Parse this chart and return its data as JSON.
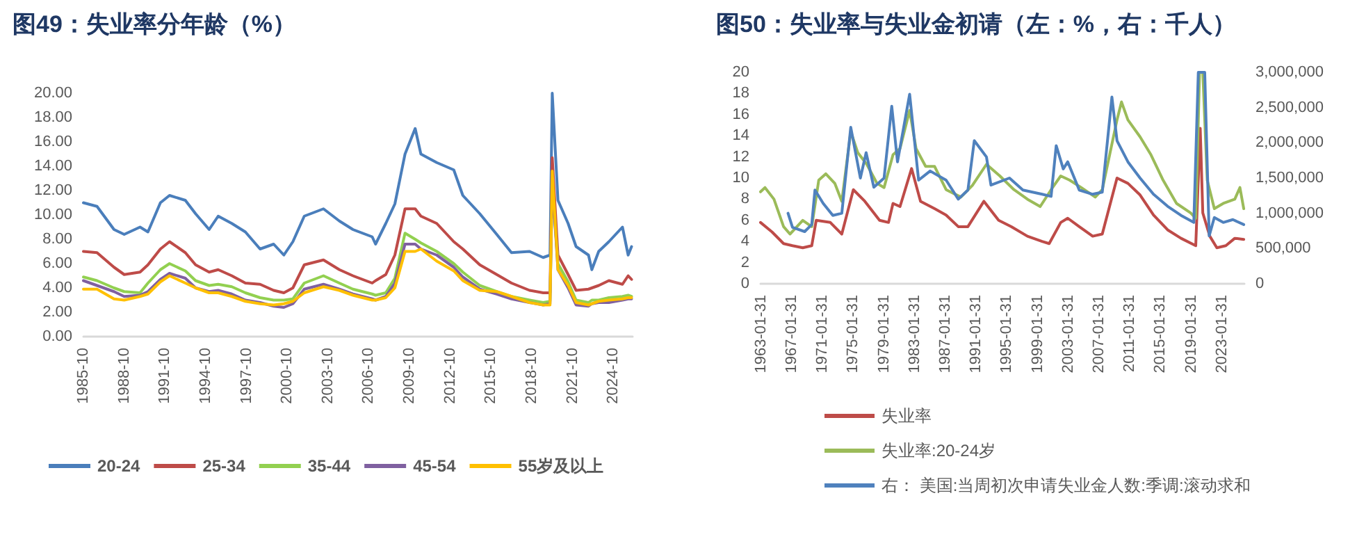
{
  "chart_data": [
    {
      "type": "line",
      "title": "图49：失业率分年龄（%）",
      "legend": "bottom",
      "marker": "none",
      "line_style": "solid",
      "xlim": [
        "1985-10",
        "2026-03"
      ],
      "xticks": [
        "1985-10",
        "1988-10",
        "1991-10",
        "1994-10",
        "1997-10",
        "2000-10",
        "2003-10",
        "2006-10",
        "2009-10",
        "2012-10",
        "2015-10",
        "2018-10",
        "2021-10",
        "2024-10"
      ],
      "ylim": [
        0,
        20
      ],
      "yticks": [
        {
          "value": 0,
          "label": "0.00"
        },
        {
          "value": 2,
          "label": "2.00"
        },
        {
          "value": 4,
          "label": "4.00"
        },
        {
          "value": 6,
          "label": "6.00"
        },
        {
          "value": 8,
          "label": "8.00"
        },
        {
          "value": 10,
          "label": "10.00"
        },
        {
          "value": 12,
          "label": "12.00"
        },
        {
          "value": 14,
          "label": "14.00"
        },
        {
          "value": 16,
          "label": "16.00"
        },
        {
          "value": 18,
          "label": "18.00"
        },
        {
          "value": 20,
          "label": "20.00"
        }
      ],
      "x": [
        "1985-10",
        "1986-10",
        "1988-01",
        "1988-10",
        "1989-12",
        "1990-07",
        "1991-06",
        "1992-02",
        "1993-04",
        "1994-01",
        "1995-01",
        "1995-09",
        "1996-09",
        "1997-09",
        "1998-10",
        "1999-10",
        "2000-07",
        "2001-03",
        "2002-01",
        "2003-06",
        "2004-08",
        "2005-08",
        "2007-01",
        "2007-04",
        "2008-01",
        "2008-09",
        "2009-06",
        "2010-03",
        "2010-08",
        "2011-10",
        "2013-01",
        "2013-09",
        "2014-12",
        "2016-03",
        "2017-04",
        "2018-08",
        "2019-08",
        "2020-02",
        "2020-04",
        "2020-09",
        "2021-06",
        "2022-01",
        "2022-12",
        "2023-03",
        "2023-09",
        "2024-06",
        "2025-06",
        "2025-11",
        "2026-02"
      ],
      "series": [
        {
          "name": "20-24",
          "color": "#4a7ebb",
          "values": [
            11.0,
            10.7,
            8.8,
            8.4,
            9.0,
            8.6,
            11.0,
            11.6,
            11.2,
            10.1,
            8.8,
            9.9,
            9.3,
            8.6,
            7.2,
            7.6,
            6.7,
            7.8,
            9.9,
            10.5,
            9.5,
            8.8,
            8.2,
            7.6,
            9.3,
            10.9,
            15.0,
            17.1,
            15.0,
            14.3,
            13.7,
            11.6,
            10.1,
            8.4,
            6.9,
            7.0,
            6.5,
            6.7,
            20,
            11.2,
            9.3,
            7.4,
            6.7,
            5.5,
            7.0,
            7.8,
            9.0,
            6.7,
            7.4
          ]
        },
        {
          "name": "25-34",
          "color": "#be4b48",
          "values": [
            7.0,
            6.9,
            5.7,
            5.1,
            5.3,
            5.9,
            7.2,
            7.8,
            6.9,
            5.9,
            5.3,
            5.5,
            5.0,
            4.4,
            4.3,
            3.8,
            3.6,
            4.0,
            5.9,
            6.3,
            5.5,
            5.0,
            4.4,
            4.6,
            5.1,
            6.7,
            10.5,
            10.5,
            9.9,
            9.3,
            7.8,
            7.2,
            5.9,
            5.1,
            4.4,
            3.8,
            3.6,
            3.6,
            14.7,
            6.7,
            5.1,
            3.8,
            3.9,
            4.0,
            4.2,
            4.6,
            4.3,
            5.0,
            4.7
          ]
        },
        {
          "name": "35-44",
          "color": "#92d050",
          "values": [
            4.9,
            4.6,
            4.0,
            3.7,
            3.6,
            4.4,
            5.5,
            6.0,
            5.4,
            4.6,
            4.2,
            4.3,
            4.1,
            3.6,
            3.2,
            3.0,
            3.0,
            3.1,
            4.4,
            5.0,
            4.4,
            3.9,
            3.5,
            3.4,
            3.6,
            4.8,
            8.5,
            8.0,
            7.7,
            7.0,
            6.0,
            5.3,
            4.2,
            3.7,
            3.3,
            3.0,
            2.8,
            2.9,
            12.5,
            6.0,
            4.5,
            3.0,
            2.8,
            3.0,
            3.0,
            3.2,
            3.3,
            3.4,
            3.3
          ]
        },
        {
          "name": "45-54",
          "color": "#7f60a0",
          "values": [
            4.6,
            4.2,
            3.7,
            3.3,
            3.4,
            3.7,
            4.7,
            5.2,
            4.8,
            4.0,
            3.7,
            3.8,
            3.5,
            3.0,
            2.8,
            2.5,
            2.4,
            2.7,
            3.9,
            4.3,
            3.9,
            3.5,
            3.1,
            3.0,
            3.3,
            4.4,
            7.6,
            7.6,
            7.2,
            6.7,
            5.7,
            4.9,
            3.9,
            3.5,
            3.1,
            2.8,
            2.6,
            2.7,
            12.8,
            5.5,
            4.0,
            2.6,
            2.5,
            2.7,
            2.8,
            2.8,
            3.0,
            3.1,
            3.1
          ]
        },
        {
          "name": "55岁及以上",
          "color": "#ffc000",
          "values": [
            3.9,
            3.9,
            3.1,
            3.0,
            3.3,
            3.5,
            4.5,
            5.0,
            4.4,
            4.0,
            3.6,
            3.6,
            3.3,
            2.9,
            2.7,
            2.6,
            2.7,
            2.9,
            3.6,
            4.1,
            3.8,
            3.4,
            3.0,
            3.0,
            3.2,
            4.0,
            7.0,
            7.0,
            7.2,
            6.2,
            5.4,
            4.6,
            3.8,
            3.7,
            3.3,
            2.8,
            2.6,
            2.6,
            13.6,
            5.5,
            4.2,
            2.8,
            2.6,
            2.7,
            2.9,
            3.0,
            3.1,
            3.2,
            3.2
          ]
        }
      ]
    },
    {
      "type": "line",
      "title": "图50：失业率与失业金初请（左：%，右：千人）",
      "legend": "bottom",
      "marker": "none",
      "line_style": "solid",
      "xlim": [
        "1963-01",
        "2025-12-31"
      ],
      "xticks": [
        "1963-01-31",
        "1967-01-31",
        "1971-01-31",
        "1975-01-31",
        "1979-01-31",
        "1983-01-31",
        "1987-01-31",
        "1991-01-31",
        "1995-01-31",
        "1999-01-31",
        "2003-01-31",
        "2007-01-31",
        "2011-01-31",
        "2015-01-31",
        "2019-01-31",
        "2023-01-31"
      ],
      "ylim": [
        0,
        20
      ],
      "yticks": [
        0,
        2,
        4,
        6,
        8,
        10,
        12,
        14,
        16,
        18,
        20
      ],
      "y2lim": [
        0,
        3000000
      ],
      "y2ticks": [
        {
          "value": 0,
          "label": "0"
        },
        {
          "value": 500000,
          "label": "500,000"
        },
        {
          "value": 1000000,
          "label": "1,000,000"
        },
        {
          "value": 1500000,
          "label": "1,500,000"
        },
        {
          "value": 2000000,
          "label": "2,000,000"
        },
        {
          "value": 2500000,
          "label": "2,500,000"
        },
        {
          "value": 3000000,
          "label": "3,000,000"
        }
      ],
      "series": [
        {
          "name": "失业率",
          "color": "#be4b48",
          "x": [
            "1963-01",
            "1964-07",
            "1966-01",
            "1967-03",
            "1968-07",
            "1969-09",
            "1970-04",
            "1972-02",
            "1973-08",
            "1975-02",
            "1976-08",
            "1978-07",
            "1979-09",
            "1980-04",
            "1981-03",
            "1982-09",
            "1983-11",
            "1985-09",
            "1987-03",
            "1988-10",
            "1990-01",
            "1992-02",
            "1994-01",
            "1995-09",
            "1997-10",
            "1999-09",
            "2000-08",
            "2002-02",
            "2003-01",
            "2004-07",
            "2006-04",
            "2007-07",
            "2009-06",
            "2010-11",
            "2012-06",
            "2014-03",
            "2016-01",
            "2017-10",
            "2019-09",
            "2020-04",
            "2020-08",
            "2021-07",
            "2022-06",
            "2023-08",
            "2024-10",
            "2025-12"
          ],
          "values": [
            5.8,
            4.9,
            3.8,
            3.6,
            3.4,
            3.6,
            6.0,
            5.8,
            4.7,
            8.9,
            7.8,
            6.0,
            5.8,
            7.6,
            7.3,
            10.9,
            7.8,
            7.1,
            6.5,
            5.4,
            5.4,
            7.8,
            6.0,
            5.4,
            4.5,
            4.0,
            3.8,
            5.8,
            6.2,
            5.4,
            4.5,
            4.7,
            10.0,
            9.5,
            8.4,
            6.5,
            5.1,
            4.3,
            3.6,
            14.7,
            6.7,
            4.5,
            3.4,
            3.6,
            4.3,
            4.2
          ]
        },
        {
          "name": "失业率:20-24岁",
          "color": "#9bbb59",
          "x": [
            "1963-01",
            "1963-08",
            "1964-10",
            "1966-01",
            "1966-11",
            "1968-07",
            "1969-09",
            "1970-08",
            "1971-07",
            "1972-09",
            "1973-08",
            "1974-10",
            "1975-09",
            "1976-11",
            "1978-03",
            "1979-02",
            "1980-04",
            "1981-03",
            "1982-06",
            "1983-04",
            "1984-07",
            "1985-09",
            "1987-03",
            "1989-02",
            "1990-08",
            "1992-06",
            "1994-03",
            "1996-01",
            "1997-10",
            "1999-06",
            "2000-11",
            "2002-02",
            "2003-04",
            "2004-10",
            "2006-08",
            "2007-07",
            "2009-06",
            "2010-01",
            "2010-11",
            "2012-06",
            "2013-11",
            "2015-06",
            "2017-03",
            "2019-01",
            "2019-09",
            "2020-03",
            "2020-08",
            "2021-03",
            "2022-02",
            "2023-04",
            "2024-10",
            "2025-06",
            "2025-12"
          ],
          "values": [
            8.7,
            9.1,
            8.0,
            5.4,
            4.7,
            6.0,
            5.4,
            9.8,
            10.4,
            9.5,
            7.8,
            14.4,
            12.4,
            11.3,
            9.5,
            9.1,
            12.2,
            12.8,
            16.4,
            12.8,
            11.1,
            11.1,
            8.9,
            8.2,
            9.3,
            11.3,
            10.2,
            8.9,
            8.0,
            7.3,
            8.9,
            10.2,
            9.8,
            9.1,
            8.2,
            8.9,
            15.5,
            17.2,
            15.5,
            13.9,
            12.2,
            9.8,
            7.6,
            6.7,
            6.2,
            20,
            20,
            9.8,
            7.1,
            7.6,
            8.0,
            9.1,
            7.1
          ]
        },
        {
          "name": "右： 美国:当周初次申请失业金人数:季调:滚动求和",
          "color": "#4f81bd",
          "axis": "y2",
          "x": [
            "1966-08",
            "1967-03",
            "1968-10",
            "1969-09",
            "1970-02",
            "1971-03",
            "1972-06",
            "1973-08",
            "1974-10",
            "1976-01",
            "1976-10",
            "1977-10",
            "1979-02",
            "1980-02",
            "1980-11",
            "1982-06",
            "1983-08",
            "1985-02",
            "1987-03",
            "1988-10",
            "1990-01",
            "1990-11",
            "1992-06",
            "1993-01",
            "1995-06",
            "1997-03",
            "1999-09",
            "2000-11",
            "2001-07",
            "2002-06",
            "2003-01",
            "2004-07",
            "2006-04",
            "2007-07",
            "2008-10",
            "2009-06",
            "2010-11",
            "2012-06",
            "2014-03",
            "2016-01",
            "2017-10",
            "2019-06",
            "2020-01",
            "2020-11",
            "2021-06",
            "2022-02",
            "2023-04",
            "2024-07",
            "2025-12"
          ],
          "values": [
            1000000,
            800000,
            740000,
            840000,
            1330000,
            1140000,
            970000,
            1000000,
            2220000,
            1500000,
            1860000,
            1370000,
            1500000,
            2520000,
            1730000,
            2690000,
            1470000,
            1600000,
            1470000,
            1200000,
            1330000,
            2030000,
            1800000,
            1400000,
            1500000,
            1330000,
            1270000,
            1240000,
            1960000,
            1630000,
            1730000,
            1330000,
            1270000,
            1300000,
            2650000,
            2030000,
            1730000,
            1500000,
            1270000,
            1100000,
            970000,
            870000,
            3000000,
            3000000,
            680000,
            940000,
            870000,
            910000,
            840000
          ]
        }
      ]
    }
  ]
}
